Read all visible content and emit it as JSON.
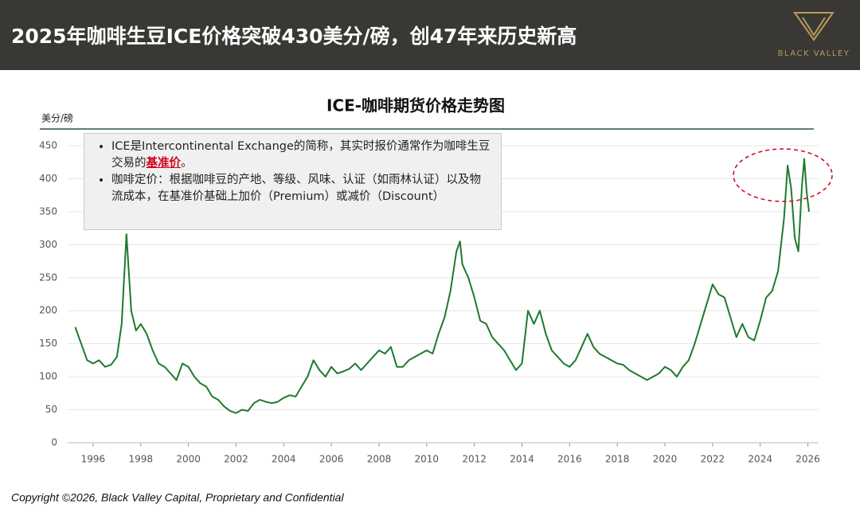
{
  "header": {
    "title": "2025年咖啡生豆ICE价格突破430美分/磅，创47年来历史新高",
    "logo": "BLACK VALLEY"
  },
  "chart_data": {
    "type": "line",
    "title": "ICE-咖啡期货价格走势图",
    "y_label": "美分/磅",
    "x": [
      1995.25,
      1995.5,
      1995.75,
      1996.0,
      1996.25,
      1996.5,
      1996.75,
      1997.0,
      1997.2,
      1997.4,
      1997.6,
      1997.8,
      1998.0,
      1998.25,
      1998.5,
      1998.75,
      1999.0,
      1999.25,
      1999.5,
      1999.75,
      2000.0,
      2000.25,
      2000.5,
      2000.75,
      2001.0,
      2001.25,
      2001.5,
      2001.75,
      2002.0,
      2002.25,
      2002.5,
      2002.75,
      2003.0,
      2003.25,
      2003.5,
      2003.75,
      2004.0,
      2004.25,
      2004.5,
      2004.75,
      2005.0,
      2005.25,
      2005.5,
      2005.75,
      2006.0,
      2006.25,
      2006.5,
      2006.75,
      2007.0,
      2007.25,
      2007.5,
      2007.75,
      2008.0,
      2008.25,
      2008.5,
      2008.75,
      2009.0,
      2009.25,
      2009.5,
      2009.75,
      2010.0,
      2010.25,
      2010.5,
      2010.75,
      2011.0,
      2011.25,
      2011.4,
      2011.5,
      2011.75,
      2012.0,
      2012.25,
      2012.5,
      2012.75,
      2013.0,
      2013.25,
      2013.5,
      2013.75,
      2014.0,
      2014.25,
      2014.5,
      2014.75,
      2015.0,
      2015.25,
      2015.5,
      2015.75,
      2016.0,
      2016.25,
      2016.5,
      2016.75,
      2017.0,
      2017.25,
      2017.5,
      2017.75,
      2018.0,
      2018.25,
      2018.5,
      2018.75,
      2019.0,
      2019.25,
      2019.5,
      2019.75,
      2020.0,
      2020.25,
      2020.5,
      2020.75,
      2021.0,
      2021.25,
      2021.5,
      2021.75,
      2022.0,
      2022.25,
      2022.5,
      2022.75,
      2023.0,
      2023.25,
      2023.5,
      2023.75,
      2024.0,
      2024.25,
      2024.5,
      2024.75,
      2025.0,
      2025.15,
      2025.3,
      2025.45,
      2025.6,
      2025.75,
      2025.85,
      2025.95,
      2026.05
    ],
    "series": [
      {
        "color": "#1e7a2e",
        "values": [
          175,
          150,
          125,
          120,
          125,
          115,
          118,
          130,
          180,
          316,
          200,
          170,
          180,
          165,
          140,
          120,
          115,
          105,
          95,
          120,
          115,
          100,
          90,
          85,
          70,
          65,
          55,
          48,
          45,
          50,
          48,
          60,
          65,
          62,
          60,
          62,
          68,
          72,
          70,
          85,
          100,
          125,
          110,
          100,
          115,
          105,
          108,
          112,
          120,
          110,
          120,
          130,
          140,
          135,
          145,
          115,
          115,
          125,
          130,
          135,
          140,
          135,
          165,
          190,
          230,
          290,
          305,
          270,
          250,
          220,
          185,
          180,
          160,
          150,
          140,
          125,
          110,
          120,
          200,
          180,
          200,
          165,
          140,
          130,
          120,
          115,
          125,
          145,
          165,
          145,
          135,
          130,
          125,
          120,
          118,
          110,
          105,
          100,
          95,
          100,
          105,
          115,
          110,
          100,
          115,
          125,
          150,
          180,
          210,
          240,
          225,
          220,
          190,
          160,
          180,
          160,
          155,
          185,
          220,
          230,
          260,
          340,
          420,
          385,
          310,
          290,
          390,
          430,
          380,
          350
        ]
      }
    ],
    "xlim": [
      1995.1,
      2026.45
    ],
    "xticks": [
      1996,
      1998,
      2000,
      2002,
      2004,
      2006,
      2008,
      2010,
      2012,
      2014,
      2016,
      2018,
      2020,
      2022,
      2024,
      2026
    ],
    "ylim": [
      0,
      450
    ],
    "yticks": [
      0,
      50,
      100,
      150,
      200,
      250,
      300,
      350,
      400,
      450
    ],
    "grid": true,
    "annotation": {
      "bullets": [
        {
          "text": "ICE是Intercontinental Exchange的简称，其实时报价通常作为咖啡生豆交易的",
          "highlight": "基准价",
          "tail": "。"
        },
        {
          "text": "咖啡定价：根据咖啡豆的产地、等级、风味、认证（如雨林认证）以及物流成本，在基准价基础上加价（Premium）或减价（Discount）"
        }
      ]
    }
  },
  "footer": {
    "text": "Copyright ©2026, Black Valley Capital, Proprietary and Confidential"
  }
}
